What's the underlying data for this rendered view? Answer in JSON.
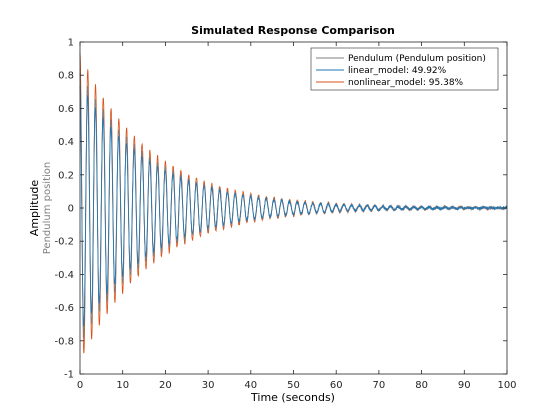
{
  "chart_data": {
    "type": "line",
    "title": "Simulated Response Comparison",
    "xlabel": "Time (seconds)",
    "ylabel": "Amplitude",
    "ylabel_sub": "Pendulum position",
    "xlim": [
      0,
      100
    ],
    "ylim": [
      -1,
      1
    ],
    "xticks": [
      0,
      10,
      20,
      30,
      40,
      50,
      60,
      70,
      80,
      90,
      100
    ],
    "yticks": [
      -1,
      -0.8,
      -0.6,
      -0.4,
      -0.2,
      0,
      0.2,
      0.4,
      0.6,
      0.8,
      1
    ],
    "grid": false,
    "legend_position": "top-right",
    "signal": {
      "frequency_hz": 0.55,
      "decay_per_s": 0.06,
      "noise_floor": 0.015
    },
    "series": [
      {
        "name": "Pendulum (Pendulum position)",
        "color": "#7f7f7f",
        "amplitude": 0.82
      },
      {
        "name": "linear_model: 49.92%",
        "color": "#1f77b4",
        "amplitude": 0.75
      },
      {
        "name": "nonlinear_model: 95.38%",
        "color": "#d95319",
        "amplitude": 0.93
      }
    ]
  }
}
